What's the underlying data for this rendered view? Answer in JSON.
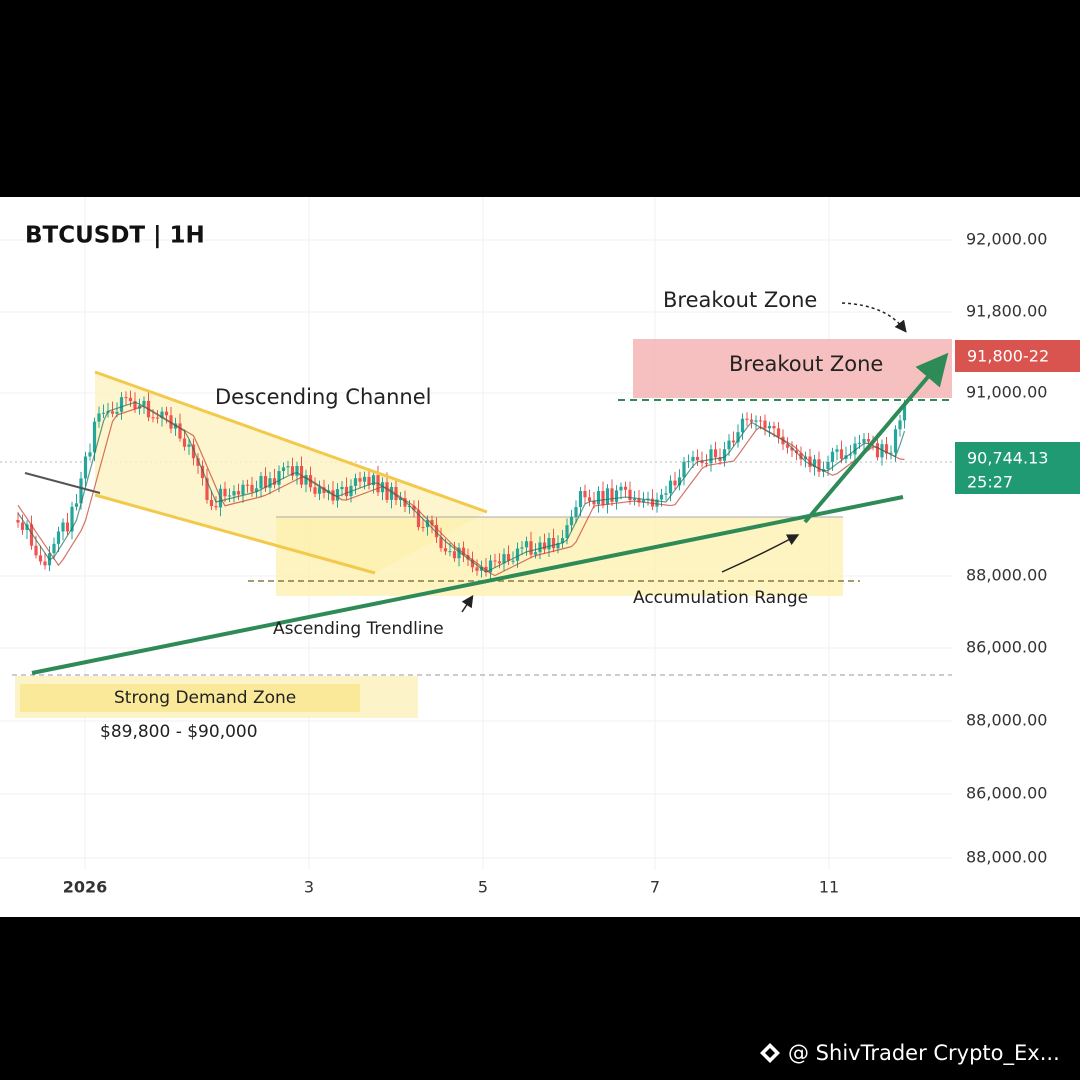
{
  "header": {
    "title": "BTCUSDT | 1H"
  },
  "y_axis_labels": [
    "92,000.00",
    "91,800.00",
    "91,000.00",
    "88,000.00",
    "86,000.00",
    "88,000.00",
    "86,000.00",
    "88,000.00"
  ],
  "x_axis_labels": [
    "2026",
    "3",
    "5",
    "7",
    "11"
  ],
  "annotations": {
    "breakout_note": "Breakout Zone",
    "breakout_zone": "Breakout Zone",
    "descending_channel": "Descending Channel",
    "ascending_trendline": "Ascending Trendline",
    "accumulation_range": "Accumulation Range",
    "demand_zone": "Strong Demand Zone",
    "demand_range": "$89,800 - $90,000"
  },
  "price_tags": {
    "breakout": "91,800-22",
    "last_price": "90,744.13",
    "countdown": "25:27"
  },
  "watermark": "@ ShivTrader Crypto_Ex..."
}
